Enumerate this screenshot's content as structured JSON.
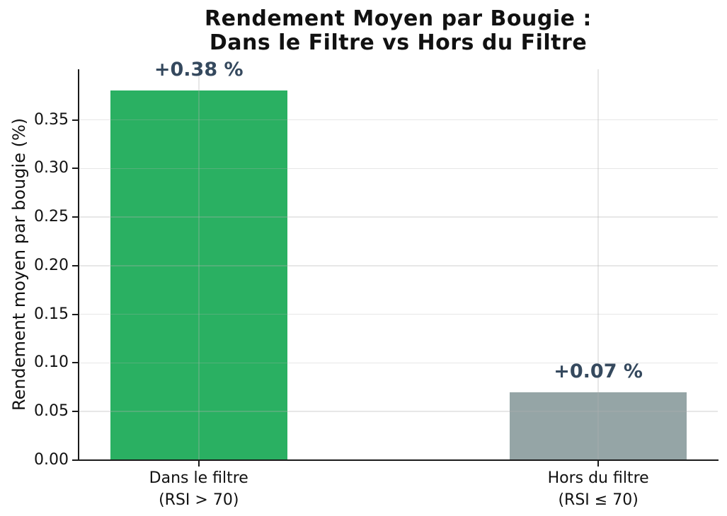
{
  "chart_data": {
    "type": "bar",
    "title": "Rendement Moyen par Bougie :\nDans le Filtre vs Hors du Filtre",
    "title_lines": [
      "Rendement Moyen par Bougie :",
      "Dans le Filtre vs Hors du Filtre"
    ],
    "ylabel": "Rendement moyen par bougie (%)",
    "xlabel": "",
    "categories": [
      {
        "line1": "Dans le filtre",
        "line2": "(RSI > 70)"
      },
      {
        "line1": "Hors du filtre",
        "line2": "(RSI ≤ 70)"
      }
    ],
    "values": [
      0.38,
      0.07
    ],
    "bar_labels": [
      "+0.38 %",
      "+0.07 %"
    ],
    "bar_colors": [
      "#2ab062",
      "#95a5a6"
    ],
    "value_label_color": "#35495e",
    "yticks": [
      0.0,
      0.05,
      0.1,
      0.15,
      0.2,
      0.25,
      0.3,
      0.35
    ],
    "ytick_labels": [
      "0.00",
      "0.05",
      "0.10",
      "0.15",
      "0.20",
      "0.25",
      "0.30",
      "0.35"
    ],
    "ylim": [
      0,
      0.402
    ],
    "grid": true,
    "grid_color": "rgba(176,176,176,0.30)",
    "legend": false,
    "spine_color": "#1a1a1a"
  }
}
